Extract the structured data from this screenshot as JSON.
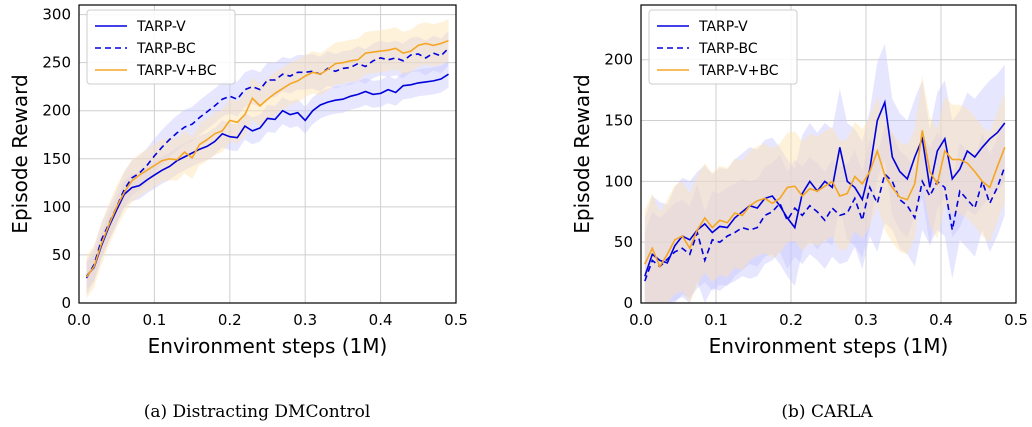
{
  "colors": {
    "blue": "#0000dd",
    "orange": "#f5a623",
    "grid": "#cfcfcf",
    "band_blue": "#c8c8ff",
    "band_orange": "#ffe3b0"
  },
  "captions": [
    "(a) Distracting DMControl",
    "(b) CARLA"
  ],
  "chart_data": [
    {
      "type": "line",
      "caption": "(a) Distracting DMControl",
      "xlabel": "Environment steps (1M)",
      "ylabel": "Episode Reward",
      "xlim": [
        0.0,
        0.5
      ],
      "ylim": [
        0,
        310
      ],
      "xticks": [
        "0.0",
        "0.1",
        "0.2",
        "0.3",
        "0.4",
        "0.5"
      ],
      "yticks": [
        "0",
        "50",
        "100",
        "150",
        "200",
        "250",
        "300"
      ],
      "grid": true,
      "legend_position": "top-left",
      "x": [
        0.01,
        0.02,
        0.03,
        0.04,
        0.05,
        0.06,
        0.07,
        0.08,
        0.09,
        0.1,
        0.11,
        0.12,
        0.13,
        0.14,
        0.15,
        0.16,
        0.17,
        0.18,
        0.19,
        0.2,
        0.21,
        0.22,
        0.23,
        0.24,
        0.25,
        0.26,
        0.27,
        0.28,
        0.29,
        0.3,
        0.31,
        0.32,
        0.33,
        0.34,
        0.35,
        0.36,
        0.37,
        0.38,
        0.39,
        0.4,
        0.41,
        0.42,
        0.43,
        0.44,
        0.45,
        0.46,
        0.47,
        0.48,
        0.49
      ],
      "series": [
        {
          "name": "TARP-V",
          "color": "#0000dd",
          "dash": "solid",
          "values": [
            28,
            37,
            60,
            80,
            97,
            113,
            120,
            122,
            128,
            133,
            138,
            142,
            148,
            152,
            156,
            160,
            163,
            168,
            176,
            173,
            172,
            184,
            179,
            182,
            192,
            191,
            200,
            196,
            198,
            190,
            200,
            206,
            209,
            211,
            212,
            215,
            217,
            220,
            217,
            218,
            222,
            219,
            226,
            227,
            229,
            230,
            231,
            233,
            238
          ],
          "band": 14
        },
        {
          "name": "TARP-BC",
          "color": "#0000dd",
          "dash": "dashed",
          "values": [
            26,
            40,
            66,
            83,
            100,
            118,
            130,
            135,
            143,
            153,
            162,
            170,
            177,
            183,
            186,
            193,
            199,
            205,
            212,
            215,
            212,
            222,
            225,
            222,
            232,
            232,
            238,
            236,
            240,
            240,
            241,
            238,
            244,
            241,
            244,
            245,
            249,
            246,
            252,
            255,
            253,
            255,
            252,
            258,
            259,
            255,
            260,
            257,
            265
          ],
          "band": 18
        },
        {
          "name": "TARP-V+BC",
          "color": "#f5a623",
          "dash": "solid",
          "values": [
            27,
            38,
            62,
            82,
            100,
            115,
            127,
            133,
            138,
            143,
            148,
            150,
            149,
            157,
            151,
            165,
            170,
            176,
            179,
            190,
            188,
            196,
            213,
            205,
            212,
            218,
            223,
            228,
            231,
            236,
            240,
            238,
            243,
            249,
            250,
            252,
            253,
            260,
            261,
            262,
            263,
            265,
            260,
            262,
            268,
            270,
            268,
            270,
            273
          ],
          "band": 22
        }
      ]
    },
    {
      "type": "line",
      "caption": "(b) CARLA",
      "xlabel": "Environment steps (1M)",
      "ylabel": "Episode Reward",
      "xlim": [
        0.0,
        0.5
      ],
      "ylim": [
        0,
        245
      ],
      "xticks": [
        "0.0",
        "0.1",
        "0.2",
        "0.3",
        "0.4",
        "0.5"
      ],
      "yticks": [
        "0",
        "50",
        "100",
        "150",
        "200"
      ],
      "grid": true,
      "legend_position": "top-left",
      "x": [
        0.005,
        0.015,
        0.025,
        0.035,
        0.045,
        0.055,
        0.065,
        0.075,
        0.085,
        0.095,
        0.105,
        0.115,
        0.125,
        0.135,
        0.145,
        0.155,
        0.165,
        0.175,
        0.185,
        0.195,
        0.205,
        0.215,
        0.225,
        0.235,
        0.245,
        0.255,
        0.265,
        0.275,
        0.285,
        0.295,
        0.305,
        0.315,
        0.325,
        0.335,
        0.345,
        0.355,
        0.365,
        0.375,
        0.385,
        0.395,
        0.405,
        0.415,
        0.425,
        0.435,
        0.445,
        0.455,
        0.465,
        0.475,
        0.485
      ],
      "series": [
        {
          "name": "TARP-V",
          "color": "#0000dd",
          "dash": "solid",
          "values": [
            22,
            40,
            35,
            33,
            47,
            55,
            52,
            60,
            65,
            58,
            63,
            62,
            70,
            75,
            80,
            78,
            86,
            88,
            80,
            70,
            62,
            90,
            100,
            92,
            100,
            95,
            128,
            100,
            95,
            85,
            110,
            150,
            165,
            120,
            108,
            102,
            120,
            135,
            95,
            125,
            135,
            102,
            110,
            125,
            120,
            128,
            135,
            140,
            148
          ],
          "band": 48
        },
        {
          "name": "TARP-BC",
          "color": "#0000dd",
          "dash": "dashed",
          "values": [
            18,
            35,
            30,
            36,
            42,
            45,
            40,
            58,
            35,
            52,
            50,
            55,
            58,
            62,
            60,
            62,
            72,
            75,
            82,
            68,
            78,
            72,
            80,
            75,
            68,
            78,
            72,
            74,
            86,
            68,
            95,
            82,
            106,
            100,
            85,
            80,
            70,
            100,
            88,
            100,
            95,
            60,
            92,
            85,
            78,
            100,
            82,
            95,
            112
          ],
          "band": 40
        },
        {
          "name": "TARP-V+BC",
          "color": "#f5a623",
          "dash": "solid",
          "values": [
            32,
            45,
            30,
            40,
            52,
            55,
            45,
            60,
            70,
            62,
            68,
            66,
            74,
            72,
            80,
            84,
            86,
            82,
            86,
            95,
            96,
            88,
            94,
            92,
            96,
            100,
            88,
            90,
            104,
            98,
            108,
            125,
            105,
            95,
            87,
            85,
            98,
            142,
            108,
            98,
            125,
            118,
            118,
            115,
            108,
            100,
            95,
            112,
            128
          ],
          "band": 45
        }
      ]
    }
  ]
}
